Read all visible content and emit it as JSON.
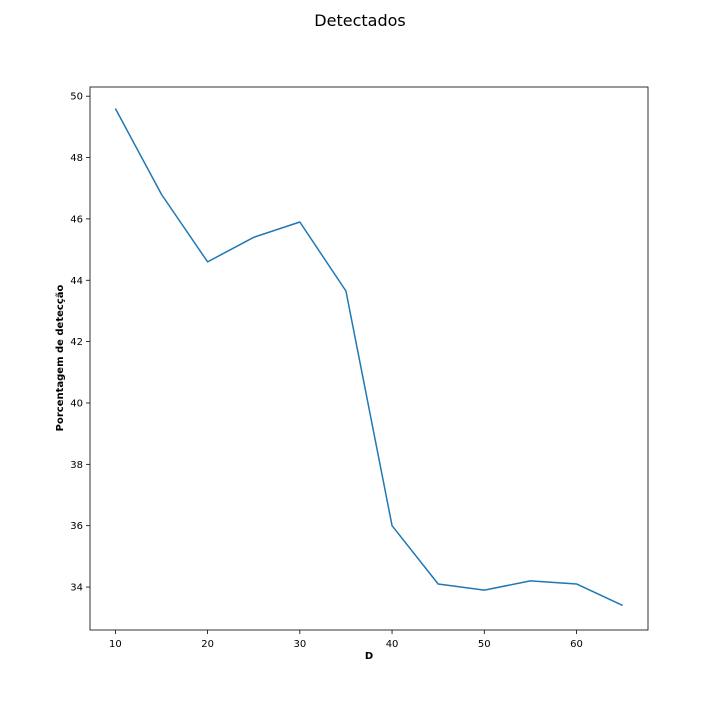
{
  "chart_data": {
    "type": "line",
    "title": "Detectados",
    "xlabel": "D",
    "ylabel": "Porcentagem de detecção",
    "xlim": [
      7.25,
      67.75
    ],
    "ylim": [
      32.6,
      50.3
    ],
    "xticks": [
      10,
      20,
      30,
      40,
      50,
      60
    ],
    "yticks": [
      34,
      36,
      38,
      40,
      42,
      44,
      46,
      48,
      50
    ],
    "grid": false,
    "series": [
      {
        "color": "#1f77b4",
        "x": [
          10,
          15,
          20,
          25,
          30,
          35,
          40,
          45,
          50,
          55,
          60,
          65
        ],
        "y": [
          49.6,
          46.8,
          44.6,
          45.4,
          45.9,
          43.65,
          36.0,
          34.1,
          33.9,
          34.2,
          34.1,
          33.4
        ]
      }
    ]
  }
}
